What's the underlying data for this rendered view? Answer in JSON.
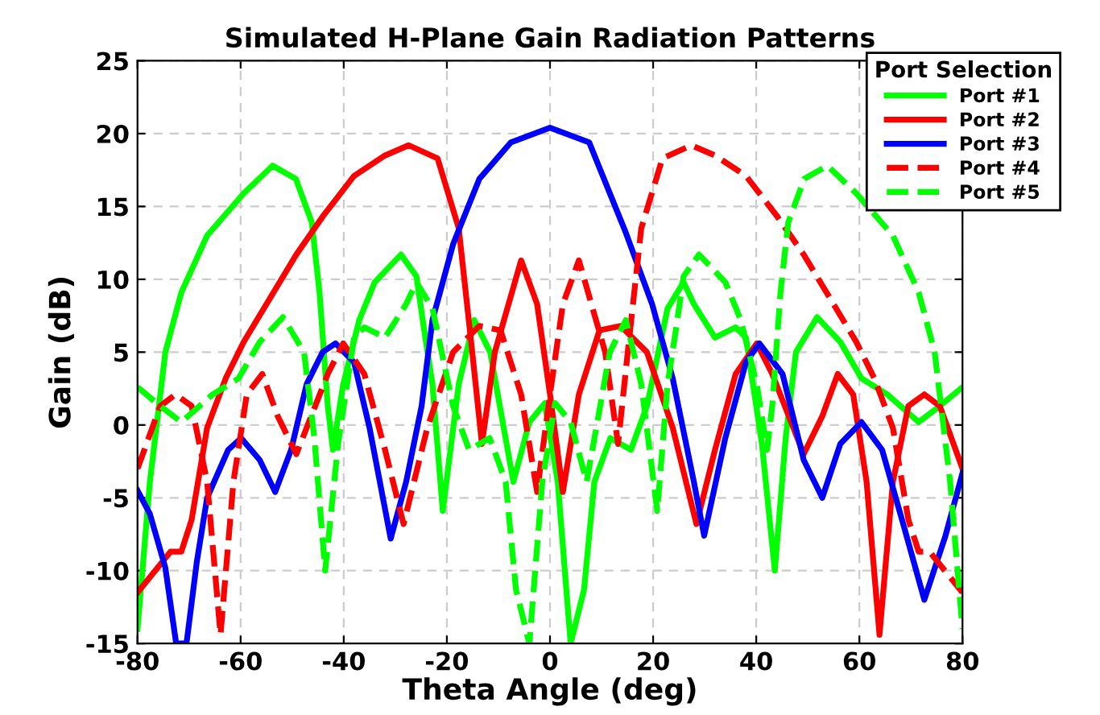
{
  "chart_data": {
    "type": "line",
    "title": "Simulated H-Plane Gain Radiation Patterns",
    "xlabel": "Theta Angle (deg)",
    "ylabel": "Gain (dB)",
    "legend_title": "Port Selection",
    "xlim": [
      -80,
      80
    ],
    "xticks": [
      -80,
      -60,
      -40,
      -20,
      0,
      20,
      40,
      60,
      80
    ],
    "ylim": [
      -15,
      25
    ],
    "yticks": [
      -15,
      -10,
      -5,
      0,
      5,
      10,
      15,
      20,
      25
    ],
    "grid": true,
    "legend": "top right",
    "series": [
      {
        "name": "Port #1",
        "color": "#00ff00",
        "line_style": "solid",
        "x": [
          -80,
          -77.6,
          -74.6,
          -71.5,
          -66.5,
          -59.4,
          -53.8,
          -49.3,
          -46.2,
          -44.7,
          -43.1,
          -42.1,
          -40.1,
          -37,
          -34,
          -28.9,
          -25.9,
          -24.4,
          -22.8,
          -20.8,
          -17.7,
          -14.7,
          -11.6,
          -7.1,
          -4,
          -1,
          1.5,
          4,
          6.6,
          8.6,
          11.7,
          15.7,
          18.8,
          22.8,
          25.9,
          27.9,
          32,
          36,
          38,
          41.1,
          43.6,
          45.7,
          47.7,
          51.8,
          56.3,
          60.4,
          65.4,
          71.5,
          75.6,
          80
        ],
        "values": [
          -14,
          -3.9,
          5,
          9.1,
          13,
          15.9,
          17.8,
          16.9,
          13.9,
          9.1,
          1.3,
          -1.7,
          2.8,
          7.2,
          9.8,
          11.7,
          10.2,
          6.5,
          2.8,
          -5.9,
          2.8,
          7.2,
          5,
          -3.9,
          0.2,
          1.5,
          -3.9,
          -15,
          -11.3,
          -3.9,
          -0.9,
          -1.7,
          1.3,
          8,
          9.8,
          8.3,
          6,
          6.7,
          6,
          -1.3,
          -10,
          -0.9,
          5,
          7.4,
          5.7,
          3.2,
          2.1,
          0.2,
          1.3,
          2.6
        ]
      },
      {
        "name": "Port #2",
        "color": "#ff0000",
        "line_style": "solid",
        "x": [
          -80,
          -73.6,
          -71.5,
          -69.5,
          -66.5,
          -62.9,
          -59.4,
          -54.3,
          -49.2,
          -44.1,
          -38,
          -32,
          -27.4,
          -21.8,
          -17.7,
          -15.2,
          -13.2,
          -10.7,
          -5.6,
          -2.5,
          0,
          2.5,
          5.6,
          9.6,
          13.7,
          18.8,
          23.8,
          28.4,
          32,
          36,
          40.1,
          43.1,
          49.2,
          52.8,
          55.8,
          58.8,
          61.4,
          63.9,
          66.5,
          69.5,
          72.6,
          75.6,
          80
        ],
        "values": [
          -11.5,
          -8.7,
          -8.7,
          -6.5,
          -0.2,
          3.2,
          5.7,
          8.7,
          11.7,
          14.3,
          17.1,
          18.5,
          19.2,
          18.3,
          13.5,
          5.4,
          -1.3,
          5,
          11.3,
          8.3,
          2.1,
          -4.6,
          2.1,
          6.5,
          6.8,
          5,
          -0.2,
          -6.8,
          -1.7,
          3.5,
          5.6,
          3.5,
          -2,
          0.6,
          3.5,
          2.1,
          -3.9,
          -14.4,
          -3.9,
          1.3,
          2.1,
          1.3,
          -3
        ]
      },
      {
        "name": "Port #3",
        "color": "#0000ff",
        "line_style": "solid",
        "x": [
          -80,
          -77.6,
          -74.6,
          -72.5,
          -70.5,
          -68.5,
          -66.5,
          -62.4,
          -59.9,
          -56.3,
          -53.3,
          -50.2,
          -47.2,
          -44.1,
          -41.6,
          -38,
          -35,
          -30.9,
          -27.9,
          -24.9,
          -22.8,
          -18.8,
          -13.7,
          -7.6,
          0,
          7.6,
          14.7,
          19.8,
          23.8,
          27.9,
          29.9,
          34,
          38,
          40.6,
          45.1,
          49.2,
          52.8,
          56.3,
          60.4,
          64.4,
          68.5,
          72.6,
          76.7,
          80
        ],
        "values": [
          -4.5,
          -6.1,
          -9.8,
          -15,
          -15,
          -9.4,
          -5,
          -1.7,
          -0.9,
          -2.4,
          -4.6,
          -1.7,
          2.8,
          5,
          5.6,
          4.3,
          -0.2,
          -7.8,
          -3.9,
          1.3,
          7.2,
          12.4,
          16.9,
          19.4,
          20.4,
          19.4,
          13.2,
          8.3,
          3.2,
          -3.9,
          -7.6,
          -0.9,
          4.3,
          5.6,
          3.5,
          -2.4,
          -5,
          -1.3,
          0.2,
          -1.7,
          -6.8,
          -12,
          -7.6,
          -3.3
        ]
      },
      {
        "name": "Port #4",
        "color": "#ff0000",
        "line_style": "dashed",
        "x": [
          -80,
          -75.6,
          -72.6,
          -69.5,
          -66.5,
          -63.9,
          -61.4,
          -58.8,
          -55.8,
          -52.8,
          -49.2,
          -43.1,
          -40.1,
          -36,
          -32,
          -28.4,
          -23.8,
          -18.8,
          -13.7,
          -9.6,
          -5.6,
          -2.5,
          0,
          2.5,
          5.6,
          10.7,
          13.2,
          15.2,
          17.7,
          21.8,
          27.4,
          32,
          38,
          44.1,
          49.2,
          54.3,
          59.4,
          62.9,
          66.5,
          69.5,
          71.5,
          73.6,
          80
        ],
        "values": [
          -3,
          1.3,
          2.1,
          1.3,
          -3.9,
          -14.4,
          -3.9,
          2.1,
          3.5,
          0.6,
          -2,
          3.5,
          5.6,
          3.5,
          -1.7,
          -6.8,
          -0.2,
          5,
          6.8,
          6.5,
          2.1,
          -4.6,
          2.1,
          8.3,
          11.3,
          5,
          -1.3,
          5.4,
          13.5,
          18.3,
          19.2,
          18.5,
          17.1,
          14.3,
          11.7,
          8.7,
          5.7,
          3.2,
          -0.2,
          -6.5,
          -8.7,
          -8.7,
          -11.5
        ]
      },
      {
        "name": "Port #5",
        "color": "#00ff00",
        "line_style": "dashed",
        "x": [
          -80,
          -75.6,
          -71.5,
          -65.4,
          -60.4,
          -56.3,
          -51.8,
          -47.7,
          -45.7,
          -43.6,
          -41.1,
          -38,
          -36,
          -32,
          -27.9,
          -25.9,
          -22.8,
          -18.8,
          -15.7,
          -11.7,
          -8.6,
          -6.6,
          -4,
          -1.5,
          1,
          4,
          7.1,
          11.6,
          14.7,
          17.7,
          20.8,
          22.8,
          24.4,
          25.9,
          28.9,
          34,
          37,
          40.1,
          42.1,
          43.1,
          44.7,
          46.2,
          49.3,
          53.8,
          59.4,
          66.5,
          71.5,
          74.6,
          77.6,
          80
        ],
        "values": [
          2.6,
          1.3,
          0.2,
          2.1,
          3.2,
          5.7,
          7.4,
          5,
          -0.9,
          -10,
          -1.3,
          6,
          6.7,
          6,
          8.3,
          9.8,
          8,
          1.3,
          -1.7,
          -0.9,
          -3.9,
          -11.3,
          -15,
          -3.9,
          1.5,
          0.2,
          -3.9,
          5,
          7.2,
          2.8,
          -5.9,
          2.8,
          6.5,
          10.2,
          11.7,
          9.8,
          7.2,
          2.8,
          -1.7,
          1.3,
          9.1,
          13.9,
          16.9,
          17.8,
          15.9,
          13,
          9.1,
          5,
          -3.9,
          -14
        ]
      }
    ]
  }
}
